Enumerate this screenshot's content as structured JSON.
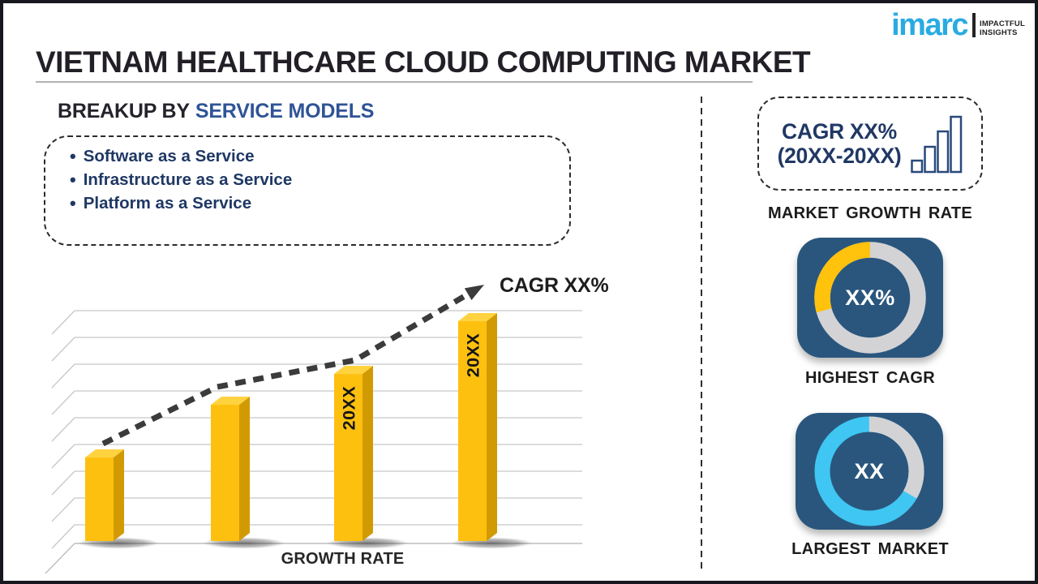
{
  "brand": {
    "logo_text": "imarc",
    "tagline_line1": "IMPACTFUL",
    "tagline_line2": "INSIGHTS"
  },
  "title": "VIETNAM HEALTHCARE CLOUD COMPUTING MARKET",
  "breakup": {
    "heading_prefix": "BREAKUP BY",
    "heading_highlight": "SERVICE MODELS",
    "bullet_glyph": "•",
    "items": [
      "Software as a Service",
      "Infrastructure as a Service",
      "Platform as a Service"
    ]
  },
  "chart_data": [
    {
      "type": "bar",
      "title": "",
      "categories": [
        "",
        "",
        "20XX",
        "20XX"
      ],
      "values": [
        38,
        62,
        76,
        100
      ],
      "value_unit": "relative bar height (% of tallest bar; no numeric axis shown)",
      "xlabel": "GROWTH RATE",
      "ylabel": "",
      "ylim": [
        0,
        100
      ],
      "grid": true,
      "bar_color": "#FEC00F",
      "trend": "dashed rising arrow",
      "annotations": [
        "CAGR XX%"
      ]
    },
    {
      "type": "donut",
      "label": "HIGHEST CAGR",
      "center_text": "XX%",
      "segments": [
        {
          "name": "highlight",
          "color": "#FFC20D",
          "sweep_deg": 105,
          "direction": "ccw-from-top"
        },
        {
          "name": "remainder",
          "color": "#D3D3D5",
          "sweep_deg": 255
        }
      ]
    },
    {
      "type": "donut",
      "label": "LARGEST MARKET",
      "center_text": "XX",
      "segments": [
        {
          "name": "highlight",
          "color": "#D3D3D5",
          "sweep_deg": 120,
          "direction": "cw-from-top"
        },
        {
          "name": "remainder",
          "color": "#3FC6F2",
          "sweep_deg": 240
        }
      ]
    }
  ],
  "right_panel": {
    "cagr_line1": "CAGR XX%",
    "cagr_line2": "(20XX-20XX)",
    "market_growth_label": "MARKET GROWTH RATE"
  },
  "colors": {
    "accent_yellow": "#FEC00F",
    "bar_side": "#D29A02",
    "bar_top": "#FFD23F",
    "accent_cyan": "#3FC6F2",
    "ring_gray": "#D3D3D5",
    "card_blue": "#2A567D",
    "navy_text": "#1F3864",
    "heading_blue": "#2F5496",
    "logo_cyan": "#29ABE2",
    "frame_dark": "#17171F"
  }
}
